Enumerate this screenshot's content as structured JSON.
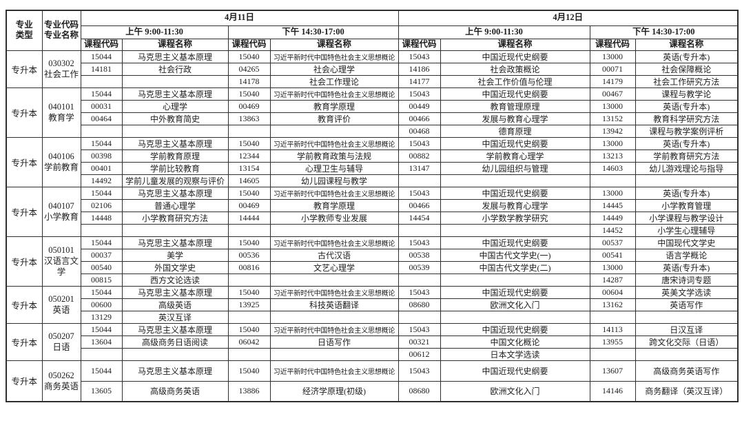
{
  "table": {
    "header": {
      "major_type": "专业\n类型",
      "major_code_name": "专业代码\n专业名称",
      "days": [
        {
          "date": "4月11日",
          "sessions": [
            "上午 9:00-11:30",
            "下午 14:30-17:00"
          ]
        },
        {
          "date": "4月12日",
          "sessions": [
            "上午 9:00-11:30",
            "下午 14:30-17:00"
          ]
        }
      ],
      "course_code_label": "课程代码",
      "course_name_label": "课程名称"
    },
    "groups": [
      {
        "major_type": "专升本",
        "major_code": "030302",
        "major_name": "社会工作",
        "rows": [
          [
            [
              "15044",
              "马克思主义基本原理"
            ],
            [
              "15040",
              "习近平新时代中国特色社会主义思想概论"
            ],
            [
              "15043",
              "中国近现代史纲要"
            ],
            [
              "13000",
              "英语(专升本)"
            ]
          ],
          [
            [
              "14181",
              "社会行政"
            ],
            [
              "04265",
              "社会心理学"
            ],
            [
              "14186",
              "社会政策概论"
            ],
            [
              "00071",
              "社会保障概论"
            ]
          ],
          [
            [
              "",
              ""
            ],
            [
              "14178",
              "社会工作理论"
            ],
            [
              "14177",
              "社会工作价值与伦理"
            ],
            [
              "14179",
              "社会工作研究方法"
            ]
          ]
        ]
      },
      {
        "major_type": "专升本",
        "major_code": "040101",
        "major_name": "教育学",
        "rows": [
          [
            [
              "15044",
              "马克思主义基本原理"
            ],
            [
              "15040",
              "习近平新时代中国特色社会主义思想概论"
            ],
            [
              "15043",
              "中国近现代史纲要"
            ],
            [
              "00467",
              "课程与教学论"
            ]
          ],
          [
            [
              "00031",
              "心理学"
            ],
            [
              "00469",
              "教育学原理"
            ],
            [
              "00449",
              "教育管理原理"
            ],
            [
              "13000",
              "英语(专升本)"
            ]
          ],
          [
            [
              "00464",
              "中外教育简史"
            ],
            [
              "13863",
              "教育评价"
            ],
            [
              "00466",
              "发展与教育心理学"
            ],
            [
              "13152",
              "教育科学研究方法"
            ]
          ],
          [
            [
              "",
              ""
            ],
            [
              "",
              ""
            ],
            [
              "00468",
              "德育原理"
            ],
            [
              "13942",
              "课程与教学案例评析"
            ]
          ]
        ]
      },
      {
        "major_type": "专升本",
        "major_code": "040106",
        "major_name": "学前教育",
        "rows": [
          [
            [
              "15044",
              "马克思主义基本原理"
            ],
            [
              "15040",
              "习近平新时代中国特色社会主义思想概论"
            ],
            [
              "15043",
              "中国近现代史纲要"
            ],
            [
              "13000",
              "英语(专升本)"
            ]
          ],
          [
            [
              "00398",
              "学前教育原理"
            ],
            [
              "12344",
              "学前教育政策与法规"
            ],
            [
              "00882",
              "学前教育心理学"
            ],
            [
              "13213",
              "学前教育研究方法"
            ]
          ],
          [
            [
              "00401",
              "学前比较教育"
            ],
            [
              "13154",
              "心理卫生与辅导"
            ],
            [
              "13147",
              "幼儿园组织与管理"
            ],
            [
              "14603",
              "幼儿游戏理论与指导"
            ]
          ],
          [
            [
              "14492",
              "学前儿童发展的观察与评价"
            ],
            [
              "14605",
              "幼儿园课程与教学"
            ],
            [
              "",
              ""
            ],
            [
              "",
              ""
            ]
          ]
        ]
      },
      {
        "major_type": "专升本",
        "major_code": "040107",
        "major_name": "小学教育",
        "rows": [
          [
            [
              "15044",
              "马克思主义基本原理"
            ],
            [
              "15040",
              "习近平新时代中国特色社会主义思想概论"
            ],
            [
              "15043",
              "中国近现代史纲要"
            ],
            [
              "13000",
              "英语(专升本)"
            ]
          ],
          [
            [
              "02106",
              "普通心理学"
            ],
            [
              "00469",
              "教育学原理"
            ],
            [
              "00466",
              "发展与教育心理学"
            ],
            [
              "14445",
              "小学教育管理"
            ]
          ],
          [
            [
              "14448",
              "小学教育研究方法"
            ],
            [
              "14444",
              "小学教师专业发展"
            ],
            [
              "14454",
              "小学数学教学研究"
            ],
            [
              "14449",
              "小学课程与教学设计"
            ]
          ],
          [
            [
              "",
              ""
            ],
            [
              "",
              ""
            ],
            [
              "",
              ""
            ],
            [
              "14452",
              "小学生心理辅导"
            ]
          ]
        ]
      },
      {
        "major_type": "专升本",
        "major_code": "050101",
        "major_name": "汉语言文学",
        "rows": [
          [
            [
              "15044",
              "马克思主义基本原理"
            ],
            [
              "15040",
              "习近平新时代中国特色社会主义思想概论"
            ],
            [
              "15043",
              "中国近现代史纲要"
            ],
            [
              "00537",
              "中国现代文学史"
            ]
          ],
          [
            [
              "00037",
              "美学"
            ],
            [
              "00536",
              "古代汉语"
            ],
            [
              "00538",
              "中国古代文学史(一)"
            ],
            [
              "00541",
              "语言学概论"
            ]
          ],
          [
            [
              "00540",
              "外国文学史"
            ],
            [
              "00816",
              "文艺心理学"
            ],
            [
              "00539",
              "中国古代文学史(二)"
            ],
            [
              "13000",
              "英语(专升本)"
            ]
          ],
          [
            [
              "00815",
              "西方文论选读"
            ],
            [
              "",
              ""
            ],
            [
              "",
              ""
            ],
            [
              "14287",
              "唐宋诗词专题"
            ]
          ]
        ]
      },
      {
        "major_type": "专升本",
        "major_code": "050201",
        "major_name": "英语",
        "rows": [
          [
            [
              "15044",
              "马克思主义基本原理"
            ],
            [
              "15040",
              "习近平新时代中国特色社会主义思想概论"
            ],
            [
              "15043",
              "中国近现代史纲要"
            ],
            [
              "00604",
              "英美文学选读"
            ]
          ],
          [
            [
              "00600",
              "高级英语"
            ],
            [
              "13925",
              "科技英语翻译"
            ],
            [
              "08680",
              "欧洲文化入门"
            ],
            [
              "13162",
              "英语写作"
            ]
          ],
          [
            [
              "13129",
              "英汉互译"
            ],
            [
              "",
              ""
            ],
            [
              "",
              ""
            ],
            [
              "",
              ""
            ]
          ]
        ]
      },
      {
        "major_type": "专升本",
        "major_code": "050207",
        "major_name": "日语",
        "rows": [
          [
            [
              "15044",
              "马克思主义基本原理"
            ],
            [
              "15040",
              "习近平新时代中国特色社会主义思想概论"
            ],
            [
              "15043",
              "中国近现代史纲要"
            ],
            [
              "14113",
              "日汉互译"
            ]
          ],
          [
            [
              "13604",
              "高级商务日语阅读"
            ],
            [
              "06042",
              "日语写作"
            ],
            [
              "00321",
              "中国文化概论"
            ],
            [
              "13955",
              "跨文化交际（日语）"
            ]
          ],
          [
            [
              "",
              ""
            ],
            [
              "",
              ""
            ],
            [
              "00612",
              "日本文学选读"
            ],
            [
              "",
              ""
            ]
          ]
        ]
      },
      {
        "major_type": "专升本",
        "major_code": "050262",
        "major_name": "商务英语",
        "rows": [
          [
            [
              "15044",
              "马克思主义基本原理"
            ],
            [
              "15040",
              "习近平新时代中国特色社会主义思想概论"
            ],
            [
              "15043",
              "中国近现代史纲要"
            ],
            [
              "13607",
              "高级商务英语写作"
            ]
          ],
          [
            [
              "13605",
              "高级商务英语"
            ],
            [
              "13886",
              "经济学原理(初级)"
            ],
            [
              "08680",
              "欧洲文化入门"
            ],
            [
              "14146",
              "商务翻译（英汉互译）"
            ]
          ]
        ]
      }
    ]
  }
}
